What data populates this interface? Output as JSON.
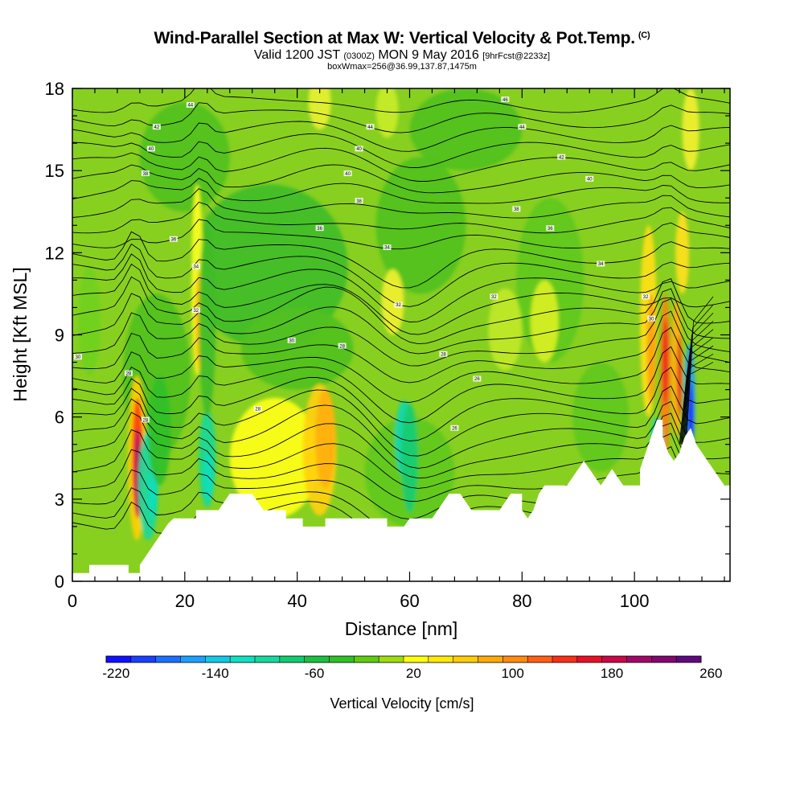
{
  "header": {
    "title": "Wind-Parallel Section at Max W: Vertical Velocity & Pot.Temp.",
    "copyright": "(C)",
    "valid_prefix": "Valid 1200 JST",
    "valid_utc": "(0300Z)",
    "valid_date": "MON 9 May 2016",
    "forecast": "[9hrFcst@2233z]",
    "box_info": "boxWmax=256@36.99,137.87,1475m"
  },
  "chart_data": {
    "type": "heatmap",
    "title": "Wind-Parallel Section at Max W: Vertical Velocity & Pot.Temp.",
    "xlabel": "Distance [nm]",
    "ylabel": "Height [Kft MSL]",
    "xlim": [
      0,
      117
    ],
    "ylim": [
      0,
      18
    ],
    "x_ticks": [
      "0",
      "20",
      "40",
      "60",
      "80",
      "100"
    ],
    "y_ticks": [
      "0",
      "3",
      "6",
      "9",
      "12",
      "15",
      "18"
    ],
    "colorbar": {
      "title": "Vertical Velocity [cm/s]",
      "tick_labels": [
        "-220",
        "-140",
        "-60",
        "20",
        "100",
        "180",
        "260"
      ],
      "colors": [
        "#1010ff",
        "#1a40ff",
        "#1c70ff",
        "#1ca0ff",
        "#14c8e8",
        "#10e0c0",
        "#18d8a0",
        "#10cc70",
        "#1cc040",
        "#30c028",
        "#60cc10",
        "#a0dc10",
        "#ffff10",
        "#ffe80c",
        "#ffcc08",
        "#ffaa08",
        "#ff8c10",
        "#ff6014",
        "#f83018",
        "#e81028",
        "#c80848",
        "#a00868",
        "#800870",
        "#600880"
      ]
    },
    "terrain_kft": [
      [
        0,
        0.3
      ],
      [
        3,
        0.3
      ],
      [
        3,
        0.6
      ],
      [
        10,
        0.6
      ],
      [
        10,
        0.3
      ],
      [
        12,
        0.3
      ],
      [
        12,
        0.6
      ],
      [
        13,
        0.9
      ],
      [
        14,
        1.2
      ],
      [
        15,
        1.5
      ],
      [
        16,
        1.8
      ],
      [
        17,
        2.1
      ],
      [
        18,
        2.3
      ],
      [
        22,
        2.3
      ],
      [
        22,
        2.6
      ],
      [
        26,
        2.6
      ],
      [
        27,
        2.9
      ],
      [
        28,
        3.2
      ],
      [
        32,
        3.2
      ],
      [
        33,
        2.9
      ],
      [
        34,
        2.6
      ],
      [
        38,
        2.6
      ],
      [
        38,
        2.3
      ],
      [
        41,
        2.3
      ],
      [
        41,
        2.0
      ],
      [
        45,
        2.0
      ],
      [
        45,
        2.3
      ],
      [
        56,
        2.3
      ],
      [
        56,
        2.0
      ],
      [
        59,
        2.0
      ],
      [
        60,
        2.3
      ],
      [
        64,
        2.3
      ],
      [
        65,
        2.6
      ],
      [
        66,
        2.9
      ],
      [
        67,
        3.2
      ],
      [
        69,
        3.2
      ],
      [
        70,
        2.9
      ],
      [
        71,
        2.6
      ],
      [
        76,
        2.6
      ],
      [
        77,
        2.9
      ],
      [
        78,
        3.2
      ],
      [
        80,
        3.2
      ],
      [
        80,
        2.6
      ],
      [
        81,
        2.3
      ],
      [
        82,
        2.6
      ],
      [
        83,
        3.2
      ],
      [
        84,
        3.5
      ],
      [
        88,
        3.5
      ],
      [
        89,
        3.8
      ],
      [
        90,
        4.1
      ],
      [
        91,
        4.4
      ],
      [
        92,
        4.1
      ],
      [
        93,
        3.8
      ],
      [
        94,
        3.5
      ],
      [
        95,
        3.8
      ],
      [
        96,
        4.1
      ],
      [
        97,
        3.8
      ],
      [
        98,
        3.5
      ],
      [
        101,
        3.5
      ],
      [
        101,
        4.1
      ],
      [
        102,
        4.7
      ],
      [
        103,
        5.3
      ],
      [
        104,
        5.9
      ],
      [
        105,
        5.9
      ],
      [
        105,
        5.3
      ],
      [
        106,
        4.7
      ],
      [
        107,
        4.4
      ],
      [
        108,
        4.7
      ],
      [
        109,
        5.3
      ],
      [
        110,
        5.6
      ],
      [
        111,
        5.0
      ],
      [
        112,
        4.7
      ],
      [
        113,
        4.4
      ],
      [
        114,
        4.1
      ],
      [
        115,
        3.8
      ],
      [
        116,
        3.5
      ],
      [
        117,
        3.5
      ]
    ],
    "isentrope_labels": [
      {
        "x": 1,
        "y": 8.2,
        "text": "30"
      },
      {
        "x": 21,
        "y": 17.4,
        "text": "44"
      },
      {
        "x": 53,
        "y": 16.6,
        "text": "44"
      },
      {
        "x": 77,
        "y": 17.6,
        "text": "46"
      },
      {
        "x": 15,
        "y": 16.6,
        "text": "42"
      },
      {
        "x": 80,
        "y": 16.6,
        "text": "44"
      },
      {
        "x": 14,
        "y": 15.8,
        "text": "40"
      },
      {
        "x": 51,
        "y": 15.8,
        "text": "40"
      },
      {
        "x": 87,
        "y": 15.5,
        "text": "42"
      },
      {
        "x": 13,
        "y": 14.9,
        "text": "38"
      },
      {
        "x": 49,
        "y": 14.9,
        "text": "40"
      },
      {
        "x": 92,
        "y": 14.7,
        "text": "40"
      },
      {
        "x": 51,
        "y": 13.9,
        "text": "38"
      },
      {
        "x": 79,
        "y": 13.6,
        "text": "38"
      },
      {
        "x": 44,
        "y": 12.9,
        "text": "36"
      },
      {
        "x": 85,
        "y": 12.9,
        "text": "36"
      },
      {
        "x": 18,
        "y": 12.5,
        "text": "36"
      },
      {
        "x": 56,
        "y": 12.2,
        "text": "34"
      },
      {
        "x": 94,
        "y": 11.6,
        "text": "34"
      },
      {
        "x": 22,
        "y": 11.5,
        "text": "34"
      },
      {
        "x": 58,
        "y": 10.1,
        "text": "32"
      },
      {
        "x": 75,
        "y": 10.4,
        "text": "32"
      },
      {
        "x": 102,
        "y": 10.4,
        "text": "32"
      },
      {
        "x": 22,
        "y": 9.9,
        "text": "32"
      },
      {
        "x": 39,
        "y": 8.8,
        "text": "30"
      },
      {
        "x": 48,
        "y": 8.6,
        "text": "28"
      },
      {
        "x": 66,
        "y": 8.3,
        "text": "28"
      },
      {
        "x": 103,
        "y": 9.6,
        "text": "30"
      },
      {
        "x": 10,
        "y": 7.6,
        "text": "28"
      },
      {
        "x": 72,
        "y": 7.4,
        "text": "26"
      },
      {
        "x": 13,
        "y": 5.9,
        "text": "28"
      },
      {
        "x": 33,
        "y": 6.3,
        "text": "28"
      },
      {
        "x": 68,
        "y": 5.6,
        "text": "26"
      }
    ]
  }
}
